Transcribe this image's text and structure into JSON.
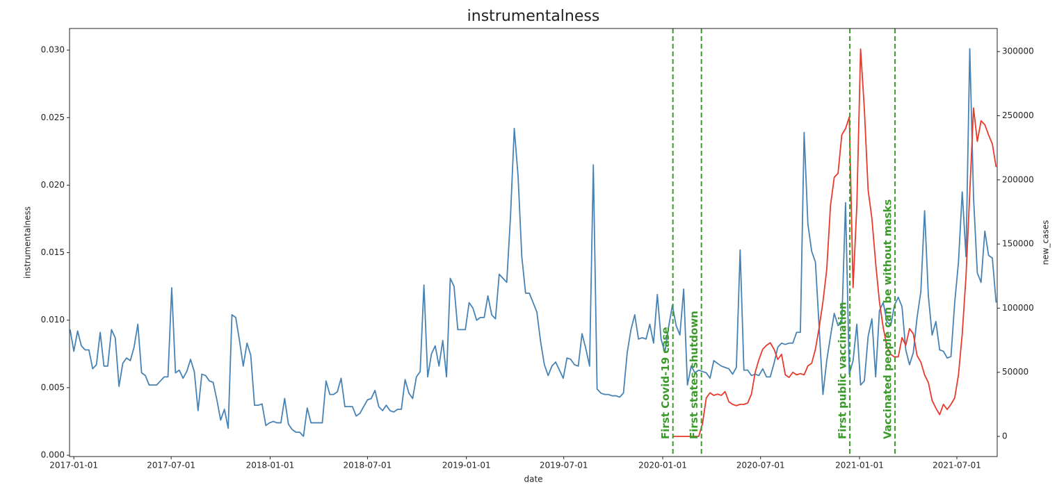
{
  "chart_data": {
    "type": "line",
    "title": "instrumentalness",
    "xlabel": "date",
    "ylabel": "instrumentalness",
    "y2label": "new_cases",
    "xlim": [
      "2016-12-24",
      "2021-09-14"
    ],
    "xticks": [
      "2017-01-01",
      "2017-07-01",
      "2018-01-01",
      "2018-07-01",
      "2019-01-01",
      "2019-07-01",
      "2020-01-01",
      "2020-07-01",
      "2021-01-01",
      "2021-07-01"
    ],
    "ylim": [
      -0.0001,
      0.0316
    ],
    "yticks": [
      {
        "value": 0,
        "label": "0.000"
      },
      {
        "value": 0.005,
        "label": "0.005"
      },
      {
        "value": 0.01,
        "label": "0.010"
      },
      {
        "value": 0.015,
        "label": "0.015"
      },
      {
        "value": 0.02,
        "label": "0.020"
      },
      {
        "value": 0.025,
        "label": "0.025"
      },
      {
        "value": 0.03,
        "label": "0.030"
      }
    ],
    "y2lim": [
      -15700,
      318000
    ],
    "y2ticks": [
      0,
      50000,
      100000,
      150000,
      200000,
      250000,
      300000
    ],
    "grid": false,
    "series": [
      {
        "color": "#4682b4",
        "axis": "y",
        "x": [
          "2016-12-25",
          "2017-01-01",
          "2017-01-08",
          "2017-01-15",
          "2017-01-22",
          "2017-01-29",
          "2017-02-05",
          "2017-02-12",
          "2017-02-19",
          "2017-02-26",
          "2017-03-05",
          "2017-03-12",
          "2017-03-19",
          "2017-03-26",
          "2017-04-02",
          "2017-04-09",
          "2017-04-16",
          "2017-04-23",
          "2017-04-30",
          "2017-05-07",
          "2017-05-14",
          "2017-05-21",
          "2017-05-28",
          "2017-06-04",
          "2017-06-11",
          "2017-06-18",
          "2017-06-25",
          "2017-07-02",
          "2017-07-09",
          "2017-07-16",
          "2017-07-23",
          "2017-07-30",
          "2017-08-06",
          "2017-08-13",
          "2017-08-20",
          "2017-08-27",
          "2017-09-03",
          "2017-09-10",
          "2017-09-17",
          "2017-09-24",
          "2017-10-01",
          "2017-10-08",
          "2017-10-15",
          "2017-10-22",
          "2017-10-29",
          "2017-11-05",
          "2017-11-12",
          "2017-11-19",
          "2017-11-26",
          "2017-12-03",
          "2017-12-10",
          "2017-12-17",
          "2017-12-24",
          "2017-12-31",
          "2018-01-07",
          "2018-01-14",
          "2018-01-21",
          "2018-01-28",
          "2018-02-04",
          "2018-02-11",
          "2018-02-18",
          "2018-02-25",
          "2018-03-04",
          "2018-03-11",
          "2018-03-18",
          "2018-03-25",
          "2018-04-01",
          "2018-04-08",
          "2018-04-15",
          "2018-04-22",
          "2018-04-29",
          "2018-05-06",
          "2018-05-13",
          "2018-05-20",
          "2018-05-27",
          "2018-06-03",
          "2018-06-10",
          "2018-06-17",
          "2018-06-24",
          "2018-07-01",
          "2018-07-08",
          "2018-07-15",
          "2018-07-22",
          "2018-07-29",
          "2018-08-05",
          "2018-08-12",
          "2018-08-19",
          "2018-08-26",
          "2018-09-02",
          "2018-09-09",
          "2018-09-16",
          "2018-09-23",
          "2018-09-30",
          "2018-10-07",
          "2018-10-14",
          "2018-10-21",
          "2018-10-28",
          "2018-11-04",
          "2018-11-11",
          "2018-11-18",
          "2018-11-25",
          "2018-12-02",
          "2018-12-09",
          "2018-12-16",
          "2018-12-23",
          "2018-12-30",
          "2019-01-06",
          "2019-01-13",
          "2019-01-20",
          "2019-01-27",
          "2019-02-03",
          "2019-02-10",
          "2019-02-17",
          "2019-02-24",
          "2019-03-03",
          "2019-03-10",
          "2019-03-17",
          "2019-03-24",
          "2019-03-31",
          "2019-04-07",
          "2019-04-14",
          "2019-04-21",
          "2019-04-28",
          "2019-05-05",
          "2019-05-12",
          "2019-05-19",
          "2019-05-26",
          "2019-06-02",
          "2019-06-09",
          "2019-06-16",
          "2019-06-23",
          "2019-06-30",
          "2019-07-07",
          "2019-07-14",
          "2019-07-21",
          "2019-07-28",
          "2019-08-04",
          "2019-08-11",
          "2019-08-18",
          "2019-08-25",
          "2019-09-01",
          "2019-09-08",
          "2019-09-15",
          "2019-09-22",
          "2019-09-29",
          "2019-10-06",
          "2019-10-13",
          "2019-10-20",
          "2019-10-27",
          "2019-11-03",
          "2019-11-10",
          "2019-11-17",
          "2019-11-24",
          "2019-12-01",
          "2019-12-08",
          "2019-12-15",
          "2019-12-22",
          "2019-12-29",
          "2020-01-05",
          "2020-01-12",
          "2020-01-19",
          "2020-01-26",
          "2020-02-02",
          "2020-02-09",
          "2020-02-16",
          "2020-02-23",
          "2020-03-01",
          "2020-03-08",
          "2020-03-15",
          "2020-03-22",
          "2020-03-29",
          "2020-04-05",
          "2020-04-12",
          "2020-04-19",
          "2020-04-26",
          "2020-05-03",
          "2020-05-10",
          "2020-05-17",
          "2020-05-24",
          "2020-05-31",
          "2020-06-07",
          "2020-06-14",
          "2020-06-21",
          "2020-06-28",
          "2020-07-05",
          "2020-07-12",
          "2020-07-19",
          "2020-07-26",
          "2020-08-02",
          "2020-08-09",
          "2020-08-16",
          "2020-08-23",
          "2020-08-30",
          "2020-09-06",
          "2020-09-13",
          "2020-09-20",
          "2020-09-27",
          "2020-10-04",
          "2020-10-11",
          "2020-10-18",
          "2020-10-25",
          "2020-11-01",
          "2020-11-08",
          "2020-11-15",
          "2020-11-22",
          "2020-11-29",
          "2020-12-06",
          "2020-12-13",
          "2020-12-20",
          "2020-12-27",
          "2021-01-03",
          "2021-01-10",
          "2021-01-17",
          "2021-01-24",
          "2021-01-31",
          "2021-02-07",
          "2021-02-14",
          "2021-02-21",
          "2021-02-28",
          "2021-03-07",
          "2021-03-14",
          "2021-03-21",
          "2021-03-28",
          "2021-04-04",
          "2021-04-11",
          "2021-04-18",
          "2021-04-25",
          "2021-05-02",
          "2021-05-09",
          "2021-05-16",
          "2021-05-23",
          "2021-05-30",
          "2021-06-06",
          "2021-06-13",
          "2021-06-20",
          "2021-06-27",
          "2021-07-04",
          "2021-07-11",
          "2021-07-18",
          "2021-07-25",
          "2021-08-01",
          "2021-08-08",
          "2021-08-15",
          "2021-08-22",
          "2021-08-29",
          "2021-09-05",
          "2021-09-12"
        ],
        "values": [
          0.0093,
          0.0077,
          0.0092,
          0.0081,
          0.0078,
          0.0078,
          0.0064,
          0.0067,
          0.0091,
          0.0066,
          0.0066,
          0.0093,
          0.0087,
          0.0051,
          0.0068,
          0.0072,
          0.007,
          0.008,
          0.0097,
          0.0061,
          0.0059,
          0.0052,
          0.0052,
          0.0052,
          0.0055,
          0.0058,
          0.0058,
          0.0124,
          0.0061,
          0.0063,
          0.0057,
          0.0062,
          0.0071,
          0.0062,
          0.0033,
          0.006,
          0.0059,
          0.0055,
          0.0054,
          0.0041,
          0.0026,
          0.0034,
          0.002,
          0.0104,
          0.0102,
          0.0085,
          0.0066,
          0.0083,
          0.0074,
          0.0037,
          0.0037,
          0.0038,
          0.0022,
          0.0024,
          0.0025,
          0.0024,
          0.0024,
          0.0042,
          0.0023,
          0.0019,
          0.0017,
          0.0017,
          0.0014,
          0.0035,
          0.0024,
          0.0024,
          0.0024,
          0.0024,
          0.0055,
          0.0045,
          0.0045,
          0.0047,
          0.0057,
          0.0036,
          0.0036,
          0.0036,
          0.0029,
          0.0031,
          0.0036,
          0.0041,
          0.0042,
          0.0048,
          0.0036,
          0.0033,
          0.0037,
          0.0033,
          0.0032,
          0.0034,
          0.0034,
          0.0056,
          0.0046,
          0.0042,
          0.0058,
          0.0062,
          0.0126,
          0.0058,
          0.0075,
          0.0081,
          0.0066,
          0.0085,
          0.0058,
          0.0131,
          0.0125,
          0.0093,
          0.0093,
          0.0093,
          0.0113,
          0.0109,
          0.01,
          0.0102,
          0.0102,
          0.0118,
          0.0104,
          0.0101,
          0.0134,
          0.0131,
          0.0128,
          0.0177,
          0.0242,
          0.0207,
          0.0147,
          0.012,
          0.012,
          0.0113,
          0.0106,
          0.0084,
          0.0067,
          0.0059,
          0.0066,
          0.0069,
          0.0063,
          0.0057,
          0.0072,
          0.0071,
          0.0067,
          0.0066,
          0.009,
          0.0079,
          0.0066,
          0.0215,
          0.0049,
          0.0046,
          0.0045,
          0.0045,
          0.0044,
          0.0044,
          0.0043,
          0.0046,
          0.0076,
          0.0093,
          0.0104,
          0.0086,
          0.0087,
          0.0086,
          0.0097,
          0.0083,
          0.0119,
          0.0086,
          0.0076,
          0.0095,
          0.0111,
          0.0096,
          0.0089,
          0.0123,
          0.0052,
          0.0066,
          0.0061,
          0.0063,
          0.0062,
          0.0061,
          0.0057,
          0.007,
          0.0068,
          0.0066,
          0.0065,
          0.0064,
          0.006,
          0.0065,
          0.0152,
          0.0063,
          0.0063,
          0.0059,
          0.006,
          0.0059,
          0.0064,
          0.0058,
          0.0058,
          0.0068,
          0.008,
          0.0083,
          0.0082,
          0.0083,
          0.0083,
          0.0091,
          0.0091,
          0.0239,
          0.0171,
          0.0151,
          0.0143,
          0.0094,
          0.0045,
          0.007,
          0.0088,
          0.0105,
          0.0096,
          0.0098,
          0.0187,
          0.006,
          0.007,
          0.0097,
          0.0052,
          0.0055,
          0.0088,
          0.0101,
          0.0058,
          0.0107,
          0.0113,
          0.0099,
          0.0096,
          0.0111,
          0.0117,
          0.011,
          0.0078,
          0.0067,
          0.0076,
          0.0102,
          0.0121,
          0.0181,
          0.0118,
          0.0089,
          0.0099,
          0.0078,
          0.0077,
          0.0072,
          0.0073,
          0.0113,
          0.0143,
          0.0195,
          0.0147,
          0.0301,
          0.0191,
          0.0135,
          0.0128,
          0.0166,
          0.0148,
          0.0146,
          0.0113
        ]
      },
      {
        "color": "#e8392b",
        "axis": "y2",
        "x": [
          "2020-01-19",
          "2020-01-26",
          "2020-02-02",
          "2020-02-09",
          "2020-02-16",
          "2020-02-23",
          "2020-03-01",
          "2020-03-08",
          "2020-03-15",
          "2020-03-22",
          "2020-03-29",
          "2020-04-05",
          "2020-04-12",
          "2020-04-19",
          "2020-04-26",
          "2020-05-03",
          "2020-05-10",
          "2020-05-17",
          "2020-05-24",
          "2020-05-31",
          "2020-06-07",
          "2020-06-14",
          "2020-06-21",
          "2020-06-28",
          "2020-07-05",
          "2020-07-12",
          "2020-07-19",
          "2020-07-26",
          "2020-08-02",
          "2020-08-09",
          "2020-08-16",
          "2020-08-23",
          "2020-08-30",
          "2020-09-06",
          "2020-09-13",
          "2020-09-20",
          "2020-09-27",
          "2020-10-04",
          "2020-10-11",
          "2020-10-18",
          "2020-10-25",
          "2020-11-01",
          "2020-11-08",
          "2020-11-15",
          "2020-11-22",
          "2020-11-29",
          "2020-12-06",
          "2020-12-13",
          "2020-12-20",
          "2020-12-27",
          "2021-01-03",
          "2021-01-10",
          "2021-01-17",
          "2021-01-24",
          "2021-01-31",
          "2021-02-07",
          "2021-02-14",
          "2021-02-21",
          "2021-02-28",
          "2021-03-07",
          "2021-03-14",
          "2021-03-21",
          "2021-03-28",
          "2021-04-04",
          "2021-04-11",
          "2021-04-18",
          "2021-04-25",
          "2021-05-02",
          "2021-05-09",
          "2021-05-16",
          "2021-05-23",
          "2021-05-30",
          "2021-06-06",
          "2021-06-13",
          "2021-06-20",
          "2021-06-27",
          "2021-07-04",
          "2021-07-11",
          "2021-07-18",
          "2021-07-25",
          "2021-08-01",
          "2021-08-08",
          "2021-08-15",
          "2021-08-22",
          "2021-08-29",
          "2021-09-05",
          "2021-09-12"
        ],
        "values": [
          0,
          0,
          0,
          0,
          0,
          0,
          0,
          0,
          10000,
          30000,
          34000,
          32000,
          33000,
          32000,
          35000,
          27000,
          25000,
          24000,
          25000,
          25000,
          26000,
          33000,
          50000,
          60000,
          68000,
          71000,
          73000,
          68000,
          60000,
          64000,
          48000,
          46000,
          50000,
          48000,
          49000,
          48000,
          55000,
          57000,
          68000,
          85000,
          105000,
          130000,
          180000,
          202000,
          205000,
          235000,
          240000,
          249000,
          116000,
          180000,
          302000,
          255000,
          192000,
          170000,
          135000,
          105000,
          85000,
          70000,
          64000,
          62000,
          62000,
          77000,
          71000,
          84000,
          80000,
          63000,
          58000,
          48000,
          42000,
          28000,
          22000,
          17000,
          25000,
          21000,
          25000,
          30000,
          48000,
          80000,
          125000,
          190000,
          256000,
          230000,
          246000,
          243000,
          235000,
          228000,
          210000
        ]
      }
    ],
    "annotations": [
      {
        "x": "2020-01-20",
        "text": "First Covid-19 case",
        "color": "#3b9a2a"
      },
      {
        "x": "2020-03-13",
        "text": "First states shutdown",
        "color": "#3b9a2a"
      },
      {
        "x": "2020-12-14",
        "text": "First public vaccination",
        "color": "#3b9a2a"
      },
      {
        "x": "2021-03-08",
        "text": "Vaccinated people can be without masks",
        "color": "#3b9a2a"
      }
    ]
  }
}
